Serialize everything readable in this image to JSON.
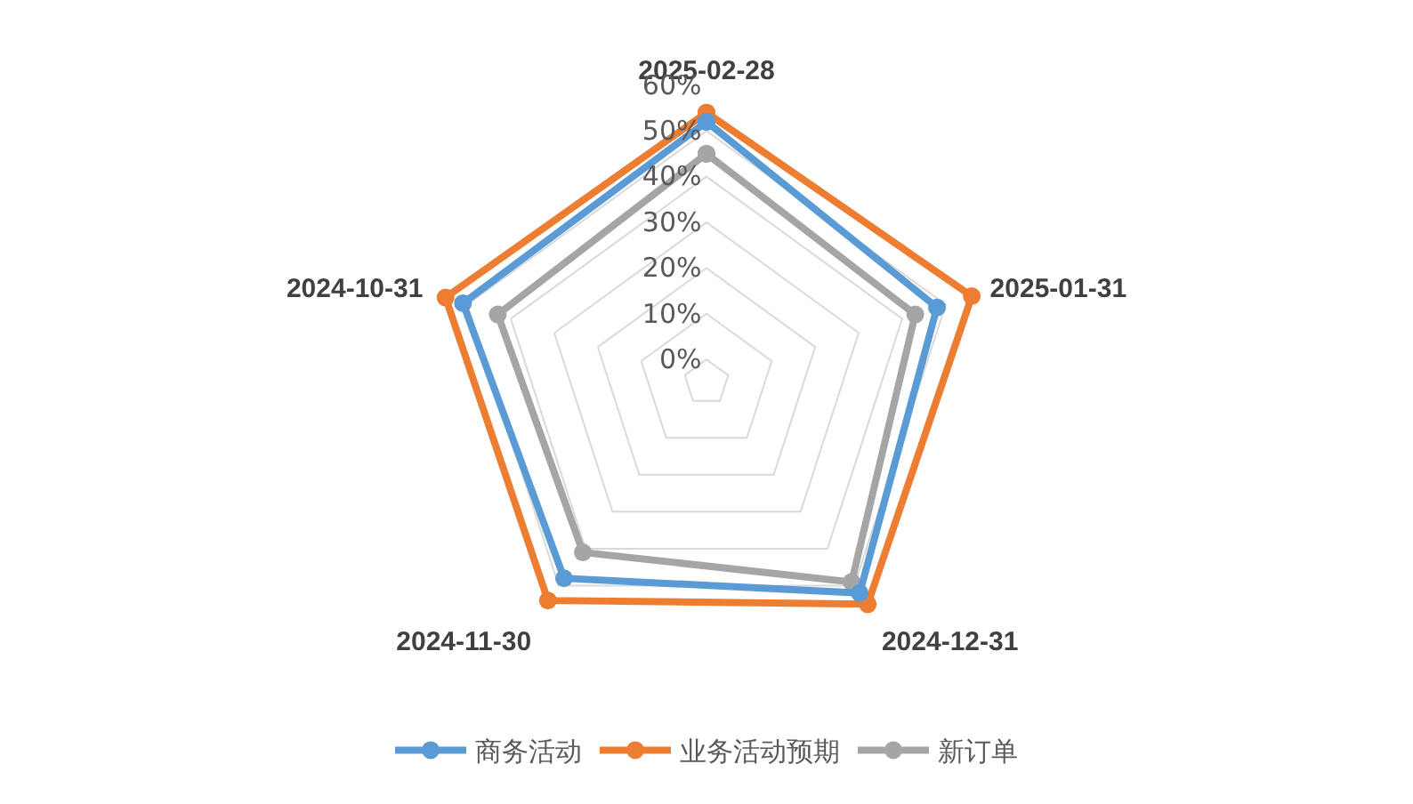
{
  "chart_data": {
    "type": "radar",
    "categories": [
      "2025-02-28",
      "2025-01-31",
      "2024-12-31",
      "2024-11-30",
      "2024-10-31"
    ],
    "series": [
      {
        "name": "商务活动",
        "color": "#5b9bd5",
        "values": [
          52,
          48,
          52,
          48,
          51
        ]
      },
      {
        "name": "业务活动预期",
        "color": "#ed7d31",
        "values": [
          54,
          56,
          55,
          54,
          55
        ]
      },
      {
        "name": "新订单",
        "color": "#a5a5a5",
        "values": [
          45,
          43,
          49,
          41,
          43
        ]
      }
    ],
    "ylim": [
      -5,
      60
    ],
    "yticks": [
      {
        "value": 0,
        "label": "0%"
      },
      {
        "value": 10,
        "label": "10%"
      },
      {
        "value": 20,
        "label": "20%"
      },
      {
        "value": 30,
        "label": "30%"
      },
      {
        "value": 40,
        "label": "40%"
      },
      {
        "value": 50,
        "label": "50%"
      },
      {
        "value": 60,
        "label": "60%"
      }
    ],
    "grid": true,
    "legend": "bottom",
    "marker": "circle",
    "line_style": "solid"
  }
}
